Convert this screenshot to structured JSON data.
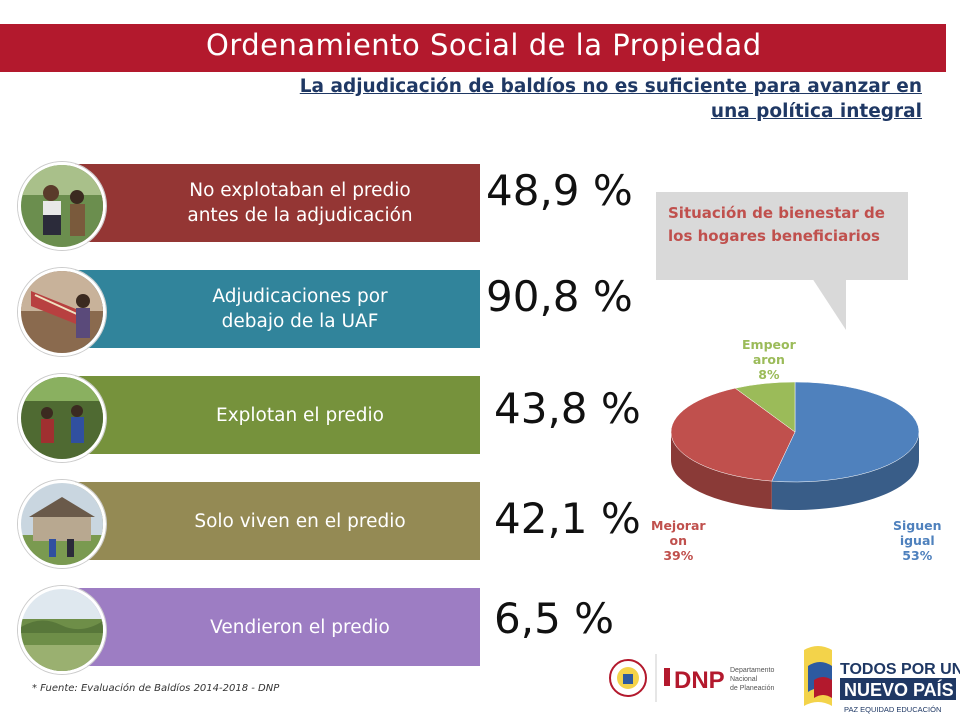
{
  "header": {
    "title": "Ordenamiento Social de la Propiedad",
    "subtitle_line1": "La adjudicación de baldíos no es suficiente para avanzar en",
    "subtitle_line2": "una política integral"
  },
  "rows": [
    {
      "label_line1": "No explotaban el predio",
      "label_line2": "antes de la adjudicación",
      "value": "48,9 %",
      "color": "#943634"
    },
    {
      "label_line1": "Adjudicaciones por",
      "label_line2": "debajo de la UAF",
      "value": "90,8 %",
      "color": "#31849b"
    },
    {
      "label_line1": "Explotan el predio",
      "label_line2": "",
      "value": "43,8 %",
      "color": "#76923c"
    },
    {
      "label_line1": "Solo viven en el predio",
      "label_line2": "",
      "value": "42,1 %",
      "color": "#948a54"
    },
    {
      "label_line1": "Vendieron el predio",
      "label_line2": "",
      "value": "6,5 %",
      "color": "#9d7dc3"
    }
  ],
  "callout": {
    "text": "Situación de bienestar de los hogares beneficiarios"
  },
  "chart_data": {
    "type": "pie",
    "title": "Situación de bienestar de los hogares beneficiarios",
    "slices": [
      {
        "name": "Siguen igual",
        "label_lines": [
          "Siguen",
          "igual",
          "53%"
        ],
        "value": 53,
        "color": "#4f81bd"
      },
      {
        "name": "Mejoraron",
        "label_lines": [
          "Mejorar",
          "on",
          "39%"
        ],
        "value": 39,
        "color": "#c0504d"
      },
      {
        "name": "Empeoraron",
        "label_lines": [
          "Empeor",
          "aron",
          "8%"
        ],
        "value": 8,
        "color": "#9bbb59"
      }
    ]
  },
  "footnote": "* Fuente: Evaluación de Baldíos 2014-2018 - DNP",
  "logos": {
    "dnp_text": "DNP",
    "dnp_sub1": "Departamento",
    "dnp_sub2": "Nacional",
    "dnp_sub3": "de Planeación",
    "todos_line1": "TODOS POR UN",
    "todos_line2": "NUEVO PAÍS",
    "todos_line3": "PAZ  EQUIDAD  EDUCACIÓN"
  }
}
